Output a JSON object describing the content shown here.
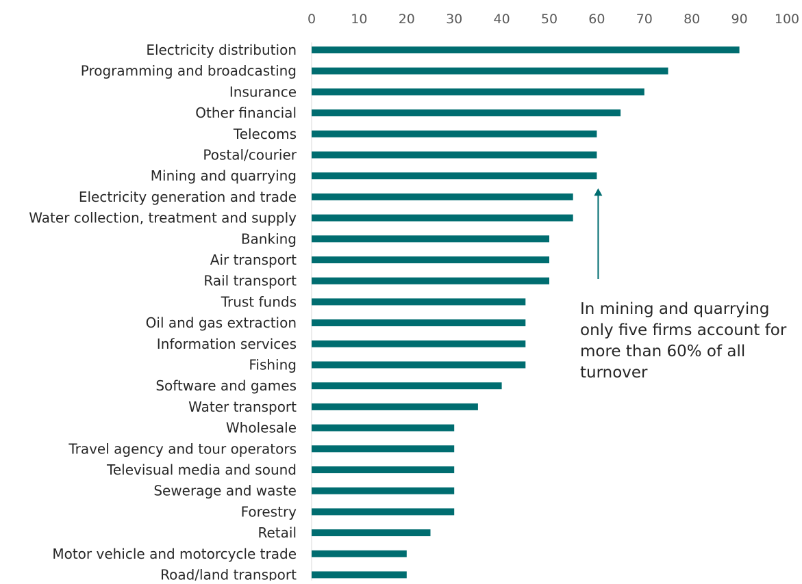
{
  "chart_data": {
    "type": "bar",
    "orientation": "horizontal",
    "xlim": [
      0,
      100
    ],
    "x_ticks": [
      "0",
      "10",
      "20",
      "30",
      "40",
      "50",
      "60",
      "70",
      "80",
      "90",
      "100"
    ],
    "x_axis_position": "top",
    "grid": false,
    "legend": "none",
    "bar_color": "#006d70",
    "categories": [
      "Electricity distribution",
      "Programming and broadcasting",
      "Insurance",
      "Other financial",
      "Telecoms",
      "Postal/courier",
      "Mining and quarrying",
      "Electricity generation and trade",
      "Water collection, treatment and supply",
      "Banking",
      "Air transport",
      "Rail transport",
      "Trust funds",
      "Oil and gas extraction",
      "Information services",
      "Fishing",
      "Software and games",
      "Water transport",
      "Wholesale",
      "Travel agency and tour operators",
      "Televisual media and sound",
      "Sewerage and waste",
      "Forestry",
      "Retail",
      "Motor vehicle and motorcycle trade",
      "Road/land transport"
    ],
    "values": [
      90,
      75,
      70,
      65,
      60,
      60,
      60,
      55,
      55,
      50,
      50,
      50,
      45,
      45,
      45,
      45,
      40,
      35,
      30,
      30,
      30,
      30,
      30,
      25,
      20,
      20
    ],
    "annotation": {
      "text": "In mining and quarrying only five firms account for more than 60% of all turnover",
      "target_category": "Mining and quarrying",
      "target_value": 60
    }
  }
}
